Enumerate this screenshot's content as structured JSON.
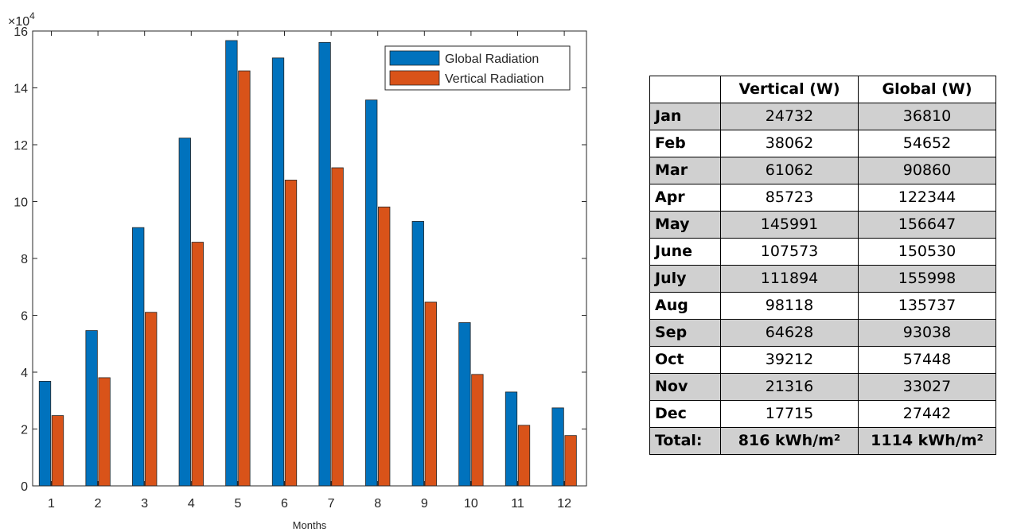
{
  "chart_data": {
    "type": "bar",
    "title": "",
    "xlabel": "Months",
    "ylabel": "",
    "y_multiplier_label": "×10",
    "y_multiplier_exp": "4",
    "ylim": [
      0,
      160000
    ],
    "yticks": [
      0,
      20000,
      40000,
      60000,
      80000,
      100000,
      120000,
      140000,
      160000
    ],
    "ytick_labels": [
      "0",
      "2",
      "4",
      "6",
      "8",
      "10",
      "12",
      "14",
      "16"
    ],
    "categories": [
      "1",
      "2",
      "3",
      "4",
      "5",
      "6",
      "7",
      "8",
      "9",
      "10",
      "11",
      "12"
    ],
    "legend_position": "top-right",
    "grid": false,
    "series": [
      {
        "name": "Global Radiation",
        "color": "#0072BD",
        "values": [
          36810,
          54652,
          90860,
          122344,
          156647,
          150530,
          155998,
          135737,
          93038,
          57448,
          33027,
          27442
        ]
      },
      {
        "name": "Vertical Radiation",
        "color": "#D95319",
        "values": [
          24732,
          38062,
          61062,
          85723,
          145991,
          107573,
          111894,
          98118,
          64628,
          39212,
          21316,
          17715
        ]
      }
    ]
  },
  "table": {
    "headers": [
      "",
      "Vertical (W)",
      "Global (W)"
    ],
    "rows": [
      [
        "Jan",
        "24732",
        "36810"
      ],
      [
        "Feb",
        "38062",
        "54652"
      ],
      [
        "Mar",
        "61062",
        "90860"
      ],
      [
        "Apr",
        "85723",
        "122344"
      ],
      [
        "May",
        "145991",
        "156647"
      ],
      [
        "June",
        "107573",
        "150530"
      ],
      [
        "July",
        "111894",
        "155998"
      ],
      [
        "Aug",
        "98118",
        "135737"
      ],
      [
        "Sep",
        "64628",
        "93038"
      ],
      [
        "Oct",
        "39212",
        "57448"
      ],
      [
        "Nov",
        "21316",
        "33027"
      ],
      [
        "Dec",
        "17715",
        "27442"
      ]
    ],
    "total": [
      "Total:",
      "816 kWh/m²",
      "1114 kWh/m²"
    ]
  }
}
